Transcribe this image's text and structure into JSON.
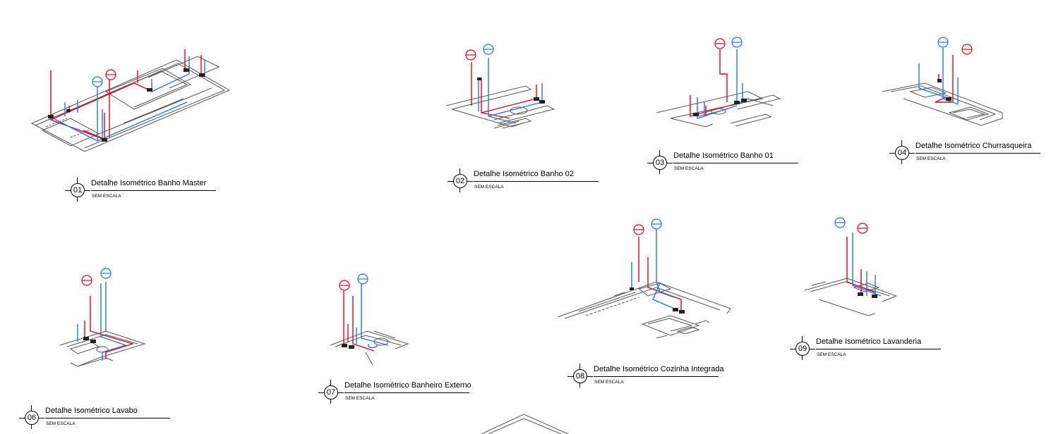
{
  "details": [
    {
      "number": "01",
      "title": "Detalhe Isométrico Banho Master",
      "scale": "SEM ESCALA"
    },
    {
      "number": "02",
      "title": "Detalhe Isométrico Banho 02",
      "scale": "SEM ESCALA"
    },
    {
      "number": "03",
      "title": "Detalhe Isométrico Banho 01",
      "scale": "SEM ESCALA"
    },
    {
      "number": "04",
      "title": "Detalhe Isométrico Churrasqueira",
      "scale": "SEM ESCALA"
    },
    {
      "number": "06",
      "title": "Detalhe Isométrico Lavabo",
      "scale": "SEM ESCALA"
    },
    {
      "number": "07",
      "title": "Detalhe Isométrico Banheiro Externo",
      "scale": "SEM ESCALA"
    },
    {
      "number": "08",
      "title": "Detalhe Isométrico Cozinha Integrada",
      "scale": "SEM ESCALA"
    },
    {
      "number": "09",
      "title": "Detalhe Isométrico Lavanderia",
      "scale": "SEM ESCALA"
    }
  ],
  "colors": {
    "hot_pipe": "#e8001c",
    "cold_pipe": "#1e78e6",
    "outline": "#555555",
    "text": "#000000"
  }
}
